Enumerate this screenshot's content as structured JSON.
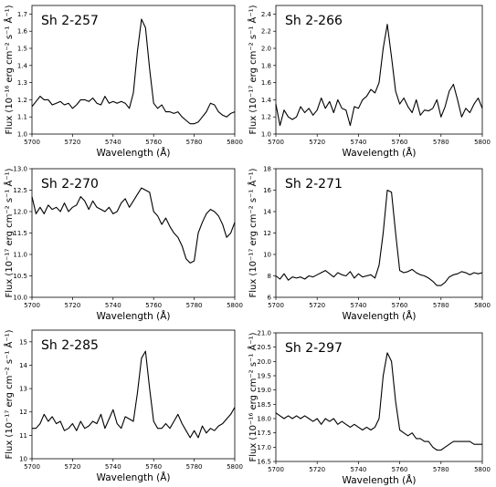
{
  "chart_data": [
    {
      "type": "line",
      "title": "Sh 2-257",
      "xlabel": "Wavelength (Å)",
      "ylabel": "Flux (10⁻¹⁶ erg cm⁻² s⁻¹ Å⁻¹)",
      "xlim": [
        5700,
        5800
      ],
      "ylim": [
        1.0,
        1.75
      ],
      "xticks": [
        5700,
        5720,
        5740,
        5760,
        5780,
        5800
      ],
      "yticks": [
        1.0,
        1.1,
        1.2,
        1.3,
        1.4,
        1.5,
        1.6,
        1.7
      ],
      "ytick_labels": [
        "1.0",
        "1.1",
        "1.2",
        "1.3",
        "1.4",
        "1.5",
        "1.6",
        "1.7"
      ],
      "series": [
        {
          "x": [
            5700,
            5702,
            5704,
            5706,
            5708,
            5710,
            5712,
            5714,
            5716,
            5718,
            5720,
            5722,
            5724,
            5726,
            5728,
            5730,
            5732,
            5734,
            5736,
            5738,
            5740,
            5742,
            5744,
            5746,
            5748,
            5750,
            5752,
            5754,
            5756,
            5758,
            5760,
            5762,
            5764,
            5766,
            5768,
            5770,
            5772,
            5774,
            5776,
            5778,
            5780,
            5782,
            5784,
            5786,
            5788,
            5790,
            5792,
            5794,
            5796,
            5798,
            5800
          ],
          "y": [
            1.16,
            1.19,
            1.22,
            1.2,
            1.2,
            1.17,
            1.18,
            1.19,
            1.17,
            1.18,
            1.15,
            1.17,
            1.2,
            1.2,
            1.19,
            1.21,
            1.18,
            1.17,
            1.22,
            1.18,
            1.19,
            1.18,
            1.19,
            1.18,
            1.15,
            1.24,
            1.48,
            1.67,
            1.62,
            1.38,
            1.18,
            1.15,
            1.17,
            1.13,
            1.13,
            1.12,
            1.13,
            1.1,
            1.08,
            1.06,
            1.06,
            1.07,
            1.1,
            1.13,
            1.18,
            1.17,
            1.13,
            1.11,
            1.1,
            1.12,
            1.13
          ]
        }
      ]
    },
    {
      "type": "line",
      "title": "Sh 2-266",
      "xlabel": "Wavelength (Å)",
      "ylabel": "Flux (10⁻¹⁷ erg cm⁻² s⁻¹ Å⁻¹)",
      "xlim": [
        5700,
        5800
      ],
      "ylim": [
        1.0,
        2.5
      ],
      "xticks": [
        5700,
        5720,
        5740,
        5760,
        5780,
        5800
      ],
      "yticks": [
        1.0,
        1.2,
        1.4,
        1.6,
        1.8,
        2.0,
        2.2,
        2.4
      ],
      "ytick_labels": [
        "1.0",
        "1.2",
        "1.4",
        "1.6",
        "1.8",
        "2.0",
        "2.2",
        "2.4"
      ],
      "series": [
        {
          "x": [
            5700,
            5702,
            5704,
            5706,
            5708,
            5710,
            5712,
            5714,
            5716,
            5718,
            5720,
            5722,
            5724,
            5726,
            5728,
            5730,
            5732,
            5734,
            5736,
            5738,
            5740,
            5742,
            5744,
            5746,
            5748,
            5750,
            5752,
            5754,
            5756,
            5758,
            5760,
            5762,
            5764,
            5766,
            5768,
            5770,
            5772,
            5774,
            5776,
            5778,
            5780,
            5782,
            5784,
            5786,
            5788,
            5790,
            5792,
            5794,
            5796,
            5798,
            5800
          ],
          "y": [
            1.35,
            1.1,
            1.28,
            1.2,
            1.17,
            1.2,
            1.32,
            1.25,
            1.3,
            1.22,
            1.28,
            1.42,
            1.3,
            1.38,
            1.25,
            1.4,
            1.3,
            1.28,
            1.1,
            1.32,
            1.3,
            1.4,
            1.44,
            1.52,
            1.48,
            1.6,
            2.0,
            2.28,
            1.9,
            1.5,
            1.35,
            1.42,
            1.32,
            1.25,
            1.4,
            1.22,
            1.28,
            1.27,
            1.3,
            1.4,
            1.2,
            1.32,
            1.5,
            1.58,
            1.4,
            1.2,
            1.3,
            1.25,
            1.35,
            1.42,
            1.3
          ]
        }
      ]
    },
    {
      "type": "line",
      "title": "Sh 2-270",
      "xlabel": "Wavelength (Å)",
      "ylabel": "Flux (10⁻¹⁷ erg cm⁻² s⁻¹ Å⁻¹)",
      "xlim": [
        5700,
        5800
      ],
      "ylim": [
        10.0,
        13.0
      ],
      "xticks": [
        5700,
        5720,
        5740,
        5760,
        5780,
        5800
      ],
      "yticks": [
        10.0,
        10.5,
        11.0,
        11.5,
        12.0,
        12.5,
        13.0
      ],
      "ytick_labels": [
        "10.0",
        "10.5",
        "11.0",
        "11.5",
        "12.0",
        "12.5",
        "13.0"
      ],
      "series": [
        {
          "x": [
            5700,
            5702,
            5704,
            5706,
            5708,
            5710,
            5712,
            5714,
            5716,
            5718,
            5720,
            5722,
            5724,
            5726,
            5728,
            5730,
            5732,
            5734,
            5736,
            5738,
            5740,
            5742,
            5744,
            5746,
            5748,
            5750,
            5752,
            5754,
            5756,
            5758,
            5760,
            5762,
            5764,
            5766,
            5768,
            5770,
            5772,
            5774,
            5776,
            5778,
            5780,
            5782,
            5784,
            5786,
            5788,
            5790,
            5792,
            5794,
            5796,
            5798,
            5800
          ],
          "y": [
            12.35,
            11.95,
            12.1,
            11.95,
            12.15,
            12.05,
            12.1,
            12.0,
            12.2,
            12.0,
            12.1,
            12.15,
            12.35,
            12.25,
            12.05,
            12.25,
            12.1,
            12.05,
            12.0,
            12.1,
            11.95,
            12.0,
            12.2,
            12.3,
            12.1,
            12.25,
            12.4,
            12.55,
            12.5,
            12.45,
            12.0,
            11.9,
            11.7,
            11.85,
            11.65,
            11.5,
            11.4,
            11.2,
            10.9,
            10.8,
            10.85,
            11.5,
            11.75,
            11.95,
            12.05,
            12.0,
            11.9,
            11.7,
            11.4,
            11.5,
            11.75
          ]
        }
      ]
    },
    {
      "type": "line",
      "title": "Sh 2-271",
      "xlabel": "Wavelength (Å)",
      "ylabel": "Flux (10⁻¹⁷ erg cm⁻² s⁻¹ Å⁻¹)",
      "xlim": [
        5700,
        5800
      ],
      "ylim": [
        6,
        18
      ],
      "xticks": [
        5700,
        5720,
        5740,
        5760,
        5780,
        5800
      ],
      "yticks": [
        6,
        8,
        10,
        12,
        14,
        16,
        18
      ],
      "ytick_labels": [
        "6",
        "8",
        "10",
        "12",
        "14",
        "16",
        "18"
      ],
      "series": [
        {
          "x": [
            5700,
            5702,
            5704,
            5706,
            5708,
            5710,
            5712,
            5714,
            5716,
            5718,
            5720,
            5722,
            5724,
            5726,
            5728,
            5730,
            5732,
            5734,
            5736,
            5738,
            5740,
            5742,
            5744,
            5746,
            5748,
            5750,
            5752,
            5754,
            5756,
            5758,
            5760,
            5762,
            5764,
            5766,
            5768,
            5770,
            5772,
            5774,
            5776,
            5778,
            5780,
            5782,
            5784,
            5786,
            5788,
            5790,
            5792,
            5794,
            5796,
            5798,
            5800
          ],
          "y": [
            8.0,
            7.7,
            8.2,
            7.6,
            7.9,
            7.8,
            7.9,
            7.7,
            8.0,
            7.9,
            8.1,
            8.3,
            8.5,
            8.2,
            7.9,
            8.3,
            8.1,
            8.0,
            8.4,
            7.8,
            8.2,
            7.9,
            8.0,
            8.1,
            7.8,
            9.0,
            12.0,
            16.0,
            15.8,
            12.0,
            8.5,
            8.3,
            8.4,
            8.6,
            8.3,
            8.1,
            8.0,
            7.8,
            7.5,
            7.1,
            7.1,
            7.4,
            7.9,
            8.1,
            8.2,
            8.4,
            8.3,
            8.1,
            8.3,
            8.2,
            8.3
          ]
        }
      ]
    },
    {
      "type": "line",
      "title": "Sh 2-285",
      "xlabel": "Wavelength (Å)",
      "ylabel": "Flux (10⁻¹⁷ erg cm⁻² s⁻¹ Å⁻¹)",
      "xlim": [
        5700,
        5800
      ],
      "ylim": [
        10,
        15.5
      ],
      "xticks": [
        5700,
        5720,
        5740,
        5760,
        5780,
        5800
      ],
      "yticks": [
        10,
        11,
        12,
        13,
        14,
        15
      ],
      "ytick_labels": [
        "10",
        "11",
        "12",
        "13",
        "14",
        "15"
      ],
      "series": [
        {
          "x": [
            5700,
            5702,
            5704,
            5706,
            5708,
            5710,
            5712,
            5714,
            5716,
            5718,
            5720,
            5722,
            5724,
            5726,
            5728,
            5730,
            5732,
            5734,
            5736,
            5738,
            5740,
            5742,
            5744,
            5746,
            5748,
            5750,
            5752,
            5754,
            5756,
            5758,
            5760,
            5762,
            5764,
            5766,
            5768,
            5770,
            5772,
            5774,
            5776,
            5778,
            5780,
            5782,
            5784,
            5786,
            5788,
            5790,
            5792,
            5794,
            5796,
            5798,
            5800
          ],
          "y": [
            11.3,
            11.3,
            11.5,
            11.9,
            11.6,
            11.8,
            11.5,
            11.6,
            11.2,
            11.3,
            11.5,
            11.2,
            11.6,
            11.3,
            11.4,
            11.6,
            11.5,
            11.9,
            11.3,
            11.7,
            12.1,
            11.5,
            11.3,
            11.8,
            11.7,
            11.6,
            12.8,
            14.3,
            14.6,
            13.0,
            11.6,
            11.3,
            11.3,
            11.5,
            11.3,
            11.6,
            11.9,
            11.5,
            11.2,
            10.9,
            11.2,
            10.9,
            11.4,
            11.1,
            11.3,
            11.2,
            11.4,
            11.5,
            11.7,
            11.9,
            12.2
          ]
        }
      ]
    },
    {
      "type": "line",
      "title": "Sh 2-297",
      "xlabel": "Wavelength (Å)",
      "ylabel": "Flux (10⁻¹⁶ erg cm⁻² s⁻¹ Å⁻¹)",
      "xlim": [
        5700,
        5800
      ],
      "ylim": [
        16.5,
        21.0
      ],
      "xticks": [
        5700,
        5720,
        5740,
        5760,
        5780,
        5800
      ],
      "yticks": [
        16.5,
        17.0,
        17.5,
        18.0,
        18.5,
        19.0,
        19.5,
        20.0,
        20.5,
        21.0
      ],
      "ytick_labels": [
        "16.5",
        "17.0",
        "17.5",
        "18.0",
        "18.5",
        "19.0",
        "19.5",
        "20.0",
        "20.5",
        "21.0"
      ],
      "series": [
        {
          "x": [
            5700,
            5702,
            5704,
            5706,
            5708,
            5710,
            5712,
            5714,
            5716,
            5718,
            5720,
            5722,
            5724,
            5726,
            5728,
            5730,
            5732,
            5734,
            5736,
            5738,
            5740,
            5742,
            5744,
            5746,
            5748,
            5750,
            5752,
            5754,
            5756,
            5758,
            5760,
            5762,
            5764,
            5766,
            5768,
            5770,
            5772,
            5774,
            5776,
            5778,
            5780,
            5782,
            5784,
            5786,
            5788,
            5790,
            5792,
            5794,
            5796,
            5798,
            5800
          ],
          "y": [
            18.2,
            18.1,
            18.0,
            18.1,
            18.0,
            18.1,
            18.0,
            18.1,
            18.0,
            17.9,
            18.0,
            17.8,
            18.0,
            17.9,
            18.0,
            17.8,
            17.9,
            17.8,
            17.7,
            17.8,
            17.7,
            17.6,
            17.7,
            17.6,
            17.7,
            18.0,
            19.5,
            20.3,
            20.0,
            18.6,
            17.6,
            17.5,
            17.4,
            17.5,
            17.3,
            17.3,
            17.2,
            17.2,
            17.0,
            16.9,
            16.9,
            17.0,
            17.1,
            17.2,
            17.2,
            17.2,
            17.2,
            17.2,
            17.1,
            17.1,
            17.1
          ]
        }
      ]
    }
  ]
}
